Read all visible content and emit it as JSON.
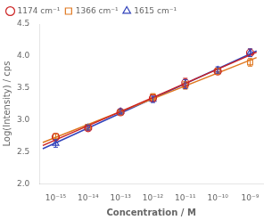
{
  "chart_data": {
    "type": "scatter",
    "xlabel": "Concentration / M",
    "ylabel": "Log(Intensity) / cps",
    "log": "x",
    "xlim": [
      3.1622776601683793e-16,
      2.51188643150958e-09
    ],
    "xticks": [
      {
        "value": 1e-15,
        "label": "10⁻¹⁵"
      },
      {
        "value": 1e-14,
        "label": "10⁻¹⁴"
      },
      {
        "value": 1e-13,
        "label": "10⁻¹³"
      },
      {
        "value": 1e-12,
        "label": "10⁻¹²"
      },
      {
        "value": 1e-11,
        "label": "10⁻¹¹"
      },
      {
        "value": 1e-10,
        "label": "10⁻¹⁰"
      },
      {
        "value": 1e-09,
        "label": "10⁻⁹"
      }
    ],
    "ylim": [
      2.0,
      4.5
    ],
    "yticks": [
      {
        "value": 2.0,
        "label": "2.0"
      },
      {
        "value": 2.5,
        "label": "2.5"
      },
      {
        "value": 3.0,
        "label": "3.0"
      },
      {
        "value": 3.5,
        "label": "3.5"
      },
      {
        "value": 4.0,
        "label": "4.0"
      },
      {
        "value": 4.5,
        "label": "4.5"
      }
    ],
    "grid": false,
    "legend": "upper left",
    "fit_x": [
      3.981071705534972e-16,
      1.5848931924611107e-09
    ],
    "series": [
      {
        "name": "1174 cm⁻¹",
        "color": "#cc2222",
        "marker": "circle",
        "x": [
          1e-15,
          1e-14,
          1e-13,
          1e-12,
          1e-11,
          1e-10,
          1e-09
        ],
        "values": [
          2.73,
          2.87,
          3.12,
          3.34,
          3.58,
          3.76,
          4.05
        ],
        "yerr": [
          0.05,
          0.04,
          0.04,
          0.05,
          0.07,
          0.05,
          0.06
        ],
        "fit_values": [
          2.597143,
          4.058571
        ]
      },
      {
        "name": "1366 cm⁻¹",
        "color": "#e07820",
        "marker": "square",
        "x": [
          1e-15,
          1e-14,
          1e-13,
          1e-12,
          1e-11,
          1e-10,
          1e-09
        ],
        "values": [
          2.74,
          2.89,
          3.12,
          3.36,
          3.54,
          3.76,
          3.9
        ],
        "yerr": [
          0.04,
          0.04,
          0.04,
          0.05,
          0.06,
          0.05,
          0.06
        ],
        "fit_values": [
          2.645143,
          3.974571
        ]
      },
      {
        "name": "1615 cm⁻¹",
        "color": "#3344bb",
        "marker": "triangle",
        "x": [
          1e-15,
          1e-14,
          1e-13,
          1e-12,
          1e-11,
          1e-10,
          1e-09
        ],
        "values": [
          2.63,
          2.88,
          3.13,
          3.32,
          3.56,
          3.78,
          4.05
        ],
        "yerr": [
          0.06,
          0.04,
          0.04,
          0.05,
          0.07,
          0.05,
          0.06
        ],
        "fit_values": [
          2.547643,
          4.077429
        ]
      }
    ]
  }
}
